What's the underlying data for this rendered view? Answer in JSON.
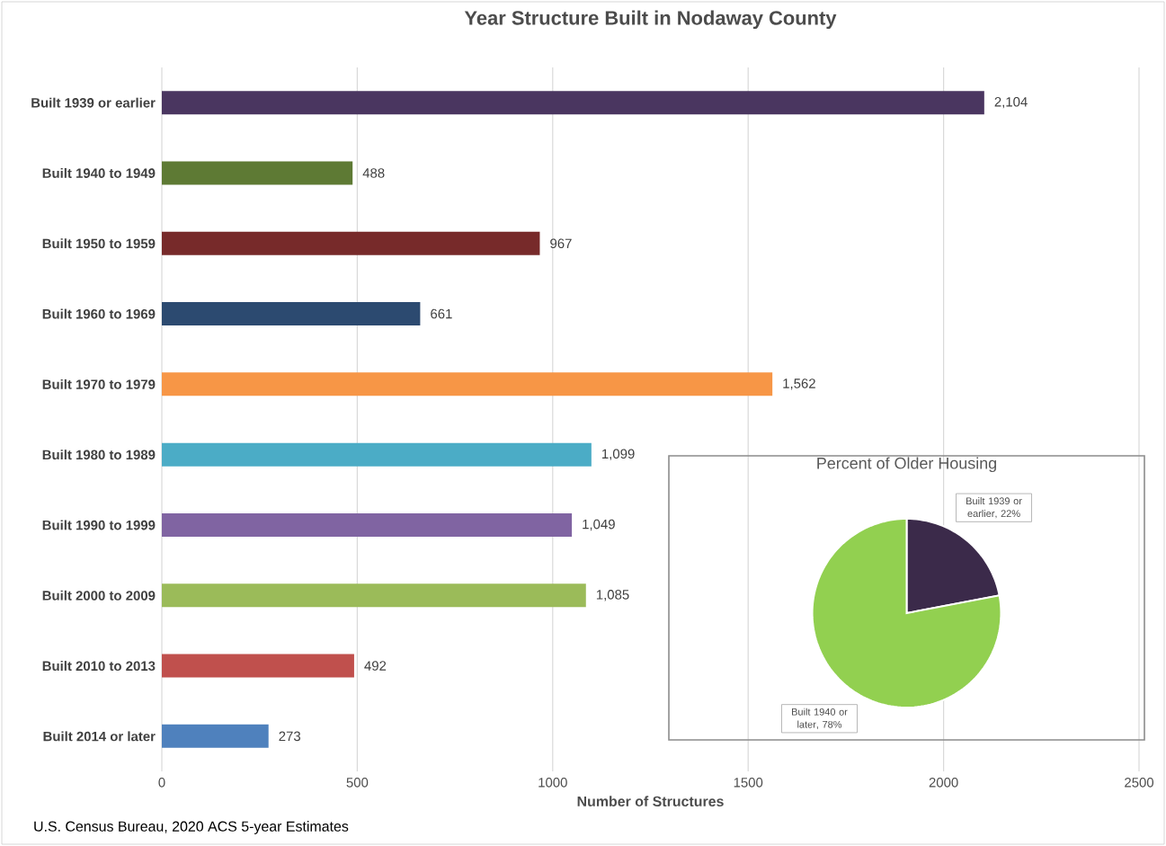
{
  "chart_data": [
    {
      "type": "bar",
      "orientation": "horizontal",
      "title": "Year Structure Built in Nodaway County",
      "xlabel": "Number of Structures",
      "categories": [
        "Built 1939 or earlier",
        "Built 1940 to 1949",
        "Built 1950 to 1959",
        "Built 1960 to 1969",
        "Built 1970 to 1979",
        "Built 1980 to 1989",
        "Built 1990 to 1999",
        "Built 2000 to 2009",
        "Built 2010 to 2013",
        "Built 2014 or later"
      ],
      "values": [
        2104,
        488,
        967,
        661,
        1562,
        1099,
        1049,
        1085,
        492,
        273
      ],
      "value_labels": [
        "2,104",
        "488",
        "967",
        "661",
        "1,562",
        "1,099",
        "1,049",
        "1,085",
        "492",
        "273"
      ],
      "colors": [
        "#4a3660",
        "#5e7a34",
        "#772a2a",
        "#2c4a70",
        "#f79646",
        "#4bacc6",
        "#8064a2",
        "#9bbb59",
        "#c0504d",
        "#4f81bd"
      ],
      "xlim": [
        0,
        2500
      ],
      "xticks": [
        0,
        500,
        1000,
        1500,
        2000,
        2500
      ],
      "grid": "x",
      "annotations": [
        "U.S. Census Bureau, 2020 ACS 5-year Estimates"
      ]
    },
    {
      "type": "pie",
      "title": "Percent of Older Housing",
      "categories": [
        "Built 1939 or earlier",
        "Built 1940 or later"
      ],
      "values": [
        22,
        78
      ],
      "value_labels": [
        ", 22%",
        ", 78%"
      ],
      "colors": [
        "#3b2a4a",
        "#92d050"
      ]
    }
  ]
}
